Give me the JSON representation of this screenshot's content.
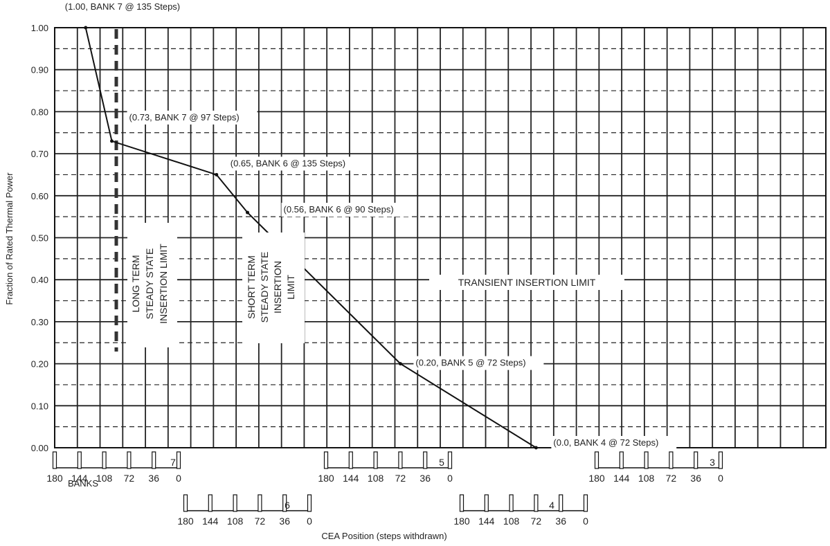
{
  "chart_data": {
    "type": "line",
    "title": "",
    "xlabel": "CEA Position (steps withdrawn)",
    "ylabel": "Fraction of Rated Thermal Power",
    "banks_label": "BANKS",
    "ylim": [
      0,
      1.0
    ],
    "grid": true,
    "y_ticks": [
      "0.00",
      "0.10",
      "0.20",
      "0.30",
      "0.40",
      "0.50",
      "0.60",
      "0.70",
      "0.80",
      "0.90",
      "1.00"
    ],
    "series": [
      {
        "points": [
          {
            "bank": 7,
            "steps": 135,
            "power": 1.0
          },
          {
            "bank": 7,
            "steps": 97,
            "power": 0.73
          },
          {
            "bank": 6,
            "steps": 135,
            "power": 0.65
          },
          {
            "bank": 6,
            "steps": 90,
            "power": 0.56
          },
          {
            "bank": 5,
            "steps": 72,
            "power": 0.2
          },
          {
            "bank": 4,
            "steps": 72,
            "power": 0.0
          }
        ]
      }
    ],
    "annotations": [
      "(1.00, BANK 7 @ 135 Steps)",
      "(0.73, BANK 7 @ 97 Steps)",
      "(0.65, BANK 6 @ 135 Steps)",
      "(0.56, BANK 6 @ 90 Steps)",
      "(0.20, BANK 5 @ 72 Steps)",
      "(0.0, BANK 4 @ 72 Steps)"
    ],
    "regions": {
      "long_term": [
        "LONG TERM",
        "STEADY STATE",
        "INSERTION LIMIT"
      ],
      "short_term": [
        "SHORT TERM",
        "STEADY STATE",
        "INSERTION",
        "LIMIT"
      ],
      "transient": "TRANSIENT INSERTION LIMIT"
    },
    "bank_scales": [
      {
        "bank": "7",
        "ticks": [
          "180",
          "144",
          "108",
          "72",
          "36",
          "0"
        ]
      },
      {
        "bank": "5",
        "ticks": [
          "180",
          "144",
          "108",
          "72",
          "36",
          "0"
        ]
      },
      {
        "bank": "3",
        "ticks": [
          "180",
          "144",
          "108",
          "72",
          "36",
          "0"
        ]
      },
      {
        "bank": "6",
        "ticks": [
          "180",
          "144",
          "108",
          "72",
          "36",
          "0"
        ]
      },
      {
        "bank": "4",
        "ticks": [
          "180",
          "144",
          "108",
          "72",
          "36",
          "0"
        ]
      }
    ]
  }
}
